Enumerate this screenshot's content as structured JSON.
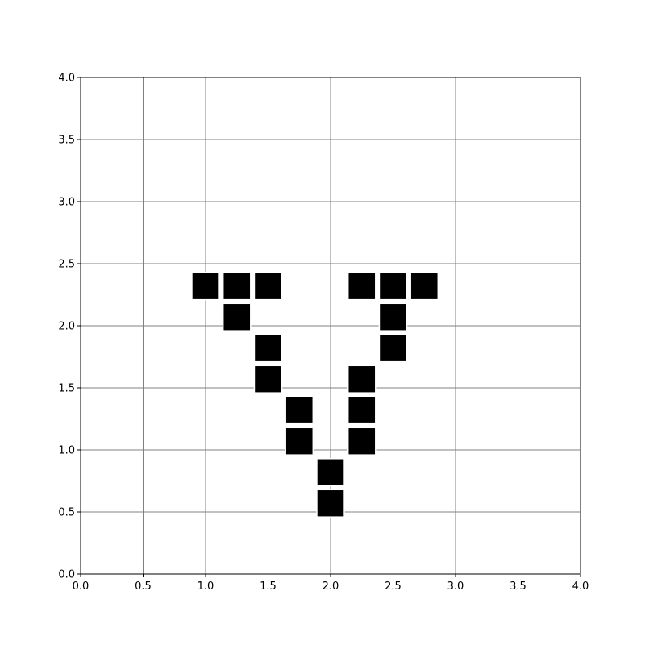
{
  "chart_data": {
    "type": "scatter",
    "marker": "square",
    "title": "",
    "xlabel": "",
    "ylabel": "",
    "xlim": [
      0,
      4
    ],
    "ylim": [
      0,
      4
    ],
    "grid": true,
    "xticks": [
      "0.0",
      "0.5",
      "1.0",
      "1.5",
      "2.0",
      "2.5",
      "3.0",
      "3.5",
      "4.0"
    ],
    "yticks": [
      "0.0",
      "0.5",
      "1.0",
      "1.5",
      "2.0",
      "2.5",
      "3.0",
      "3.5",
      "4.0"
    ],
    "marker_size": 0.22,
    "colors": {
      "marker": "#000000",
      "marker_edge": "#ffffff",
      "grid": "#808080",
      "axes": "#000000"
    },
    "points": [
      {
        "x": 1.0,
        "y": 2.32
      },
      {
        "x": 1.25,
        "y": 2.32
      },
      {
        "x": 1.5,
        "y": 2.32
      },
      {
        "x": 1.25,
        "y": 2.07
      },
      {
        "x": 1.5,
        "y": 1.82
      },
      {
        "x": 1.5,
        "y": 1.57
      },
      {
        "x": 1.75,
        "y": 1.32
      },
      {
        "x": 1.75,
        "y": 1.07
      },
      {
        "x": 2.0,
        "y": 0.82
      },
      {
        "x": 2.0,
        "y": 0.57
      },
      {
        "x": 2.25,
        "y": 2.32
      },
      {
        "x": 2.5,
        "y": 2.32
      },
      {
        "x": 2.75,
        "y": 2.32
      },
      {
        "x": 2.5,
        "y": 2.07
      },
      {
        "x": 2.5,
        "y": 1.82
      },
      {
        "x": 2.25,
        "y": 1.57
      },
      {
        "x": 2.25,
        "y": 1.32
      },
      {
        "x": 2.25,
        "y": 1.07
      }
    ]
  }
}
